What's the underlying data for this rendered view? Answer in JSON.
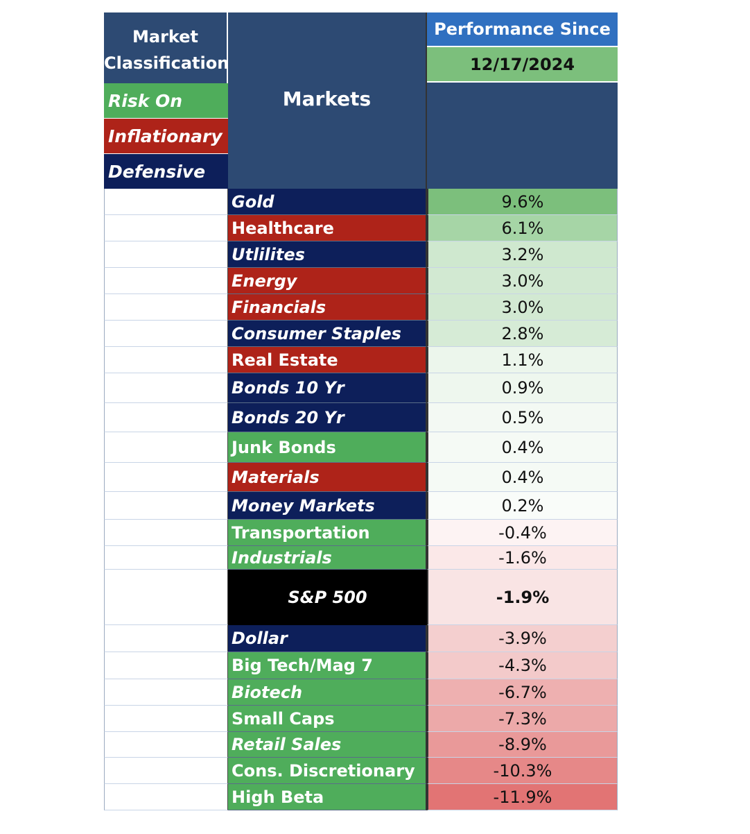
{
  "header": {
    "classification_title_line1": "Market",
    "classification_title_line2": "Classification",
    "markets_title": "Markets",
    "performance_title": "Performance Since",
    "date": "12/17/2024"
  },
  "legend": [
    {
      "label": "Risk On",
      "color": "#4fad5b"
    },
    {
      "label": "Inflationary",
      "color": "#ae2319"
    },
    {
      "label": "Defensive",
      "color": "#0d1f5a"
    }
  ],
  "colors": {
    "risk_on": "#4fad5b",
    "inflationary": "#ae2319",
    "defensive": "#0d1f5a",
    "sp500": "#000000"
  },
  "rows": [
    {
      "market": "Gold",
      "category": "defensive",
      "italic": true,
      "value": "9.6%",
      "fill": "#7cbf7c"
    },
    {
      "market": "Healthcare",
      "category": "inflationary",
      "italic": false,
      "value": "6.1%",
      "fill": "#a6d5a6"
    },
    {
      "market": "Utlilites",
      "category": "defensive",
      "italic": true,
      "value": "3.2%",
      "fill": "#cfe8cf"
    },
    {
      "market": "Energy",
      "category": "inflationary",
      "italic": true,
      "value": "3.0%",
      "fill": "#d2e9d2"
    },
    {
      "market": "Financials",
      "category": "inflationary",
      "italic": true,
      "value": "3.0%",
      "fill": "#d2e9d2"
    },
    {
      "market": "Consumer Staples",
      "category": "defensive",
      "italic": true,
      "value": "2.8%",
      "fill": "#d6ebd6"
    },
    {
      "market": "Real Estate",
      "category": "inflationary",
      "italic": false,
      "value": "1.1%",
      "fill": "#ecf6ec"
    },
    {
      "market": "Bonds 10 Yr",
      "category": "defensive",
      "italic": true,
      "value": "0.9%",
      "fill": "#eef7ee"
    },
    {
      "market": "Bonds 20 Yr",
      "category": "defensive",
      "italic": true,
      "value": "0.5%",
      "fill": "#f3f9f3"
    },
    {
      "market": "Junk Bonds",
      "category": "risk_on",
      "italic": false,
      "value": "0.4%",
      "fill": "#f5faf5"
    },
    {
      "market": "Materials",
      "category": "inflationary",
      "italic": true,
      "value": "0.4%",
      "fill": "#f5faf5"
    },
    {
      "market": "Money Markets",
      "category": "defensive",
      "italic": true,
      "value": "0.2%",
      "fill": "#f9fcf9"
    },
    {
      "market": "Transportation",
      "category": "risk_on",
      "italic": false,
      "value": "-0.4%",
      "fill": "#fdf3f3"
    },
    {
      "market": "Industrials",
      "category": "risk_on",
      "italic": true,
      "value": "-1.6%",
      "fill": "#fbe8e8"
    },
    {
      "market": "S&P 500",
      "category": "sp500",
      "italic": true,
      "value": "-1.9%",
      "fill": "#f9e4e4",
      "bold": true
    },
    {
      "market": "Dollar",
      "category": "defensive",
      "italic": true,
      "value": "-3.9%",
      "fill": "#f4cfcf"
    },
    {
      "market": "Big Tech/Mag 7",
      "category": "risk_on",
      "italic": false,
      "value": "-4.3%",
      "fill": "#f3caca"
    },
    {
      "market": "Biotech",
      "category": "risk_on",
      "italic": true,
      "value": "-6.7%",
      "fill": "#eeb0b0"
    },
    {
      "market": "Small Caps",
      "category": "risk_on",
      "italic": false,
      "value": "-7.3%",
      "fill": "#eca9a9"
    },
    {
      "market": "Retail Sales",
      "category": "risk_on",
      "italic": true,
      "value": "-8.9%",
      "fill": "#e99999"
    },
    {
      "market": "Cons. Discretionary",
      "category": "risk_on",
      "italic": false,
      "value": "-10.3%",
      "fill": "#e68888"
    },
    {
      "market": "High Beta",
      "category": "risk_on",
      "italic": false,
      "value": "-11.9%",
      "fill": "#e27474"
    }
  ]
}
